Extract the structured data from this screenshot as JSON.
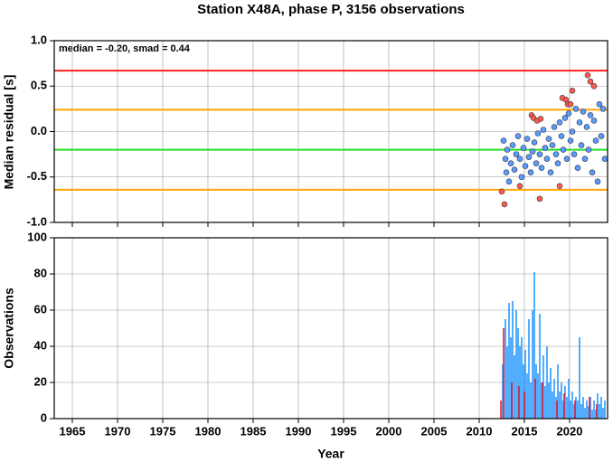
{
  "chart_data": [
    {
      "type": "scatter",
      "title": "Station X48A, phase P, 3156 observations",
      "ylabel": "Median residual [s]",
      "annotation": "median = -0.20, smad = 0.44",
      "xlim": [
        1963,
        2024.2
      ],
      "ylim": [
        -1,
        1
      ],
      "yticks": [
        {
          "value": 1,
          "label": "1.0"
        },
        {
          "value": 0.5,
          "label": "0.5"
        },
        {
          "value": 0,
          "label": "0.0"
        },
        {
          "value": -0.5,
          "label": "-0.5"
        },
        {
          "value": -1,
          "label": "-1.0"
        }
      ],
      "grid": true,
      "hlines": [
        {
          "value": 0.67,
          "color": "#ff2020"
        },
        {
          "value": 0.24,
          "color": "#ffa500"
        },
        {
          "value": -0.2,
          "color": "#22e022"
        },
        {
          "value": -0.64,
          "color": "#ffa500"
        }
      ],
      "series": [
        {
          "color": "#5b9bff",
          "x": [
            2012.7,
            2012.9,
            2013.0,
            2013.1,
            2013.3,
            2013.5,
            2013.7,
            2013.9,
            2014.1,
            2014.3,
            2014.5,
            2014.7,
            2014.9,
            2015.1,
            2015.3,
            2015.5,
            2015.7,
            2015.9,
            2016.1,
            2016.3,
            2016.5,
            2016.7,
            2016.9,
            2017.1,
            2017.3,
            2017.5,
            2017.7,
            2017.9,
            2018.1,
            2018.3,
            2018.5,
            2018.7,
            2018.9,
            2019.1,
            2019.3,
            2019.5,
            2019.7,
            2019.9,
            2020.1,
            2020.3,
            2020.5,
            2020.7,
            2020.9,
            2021.1,
            2021.3,
            2021.5,
            2021.7,
            2021.9,
            2022.1,
            2022.3,
            2022.5,
            2022.7,
            2022.9,
            2023.1,
            2023.3,
            2023.5,
            2023.7,
            2023.9
          ],
          "values": [
            -0.1,
            -0.3,
            -0.45,
            -0.2,
            -0.55,
            -0.35,
            -0.15,
            -0.42,
            -0.25,
            -0.05,
            -0.3,
            -0.5,
            -0.18,
            -0.38,
            -0.08,
            -0.28,
            -0.45,
            -0.22,
            -0.12,
            -0.35,
            -0.02,
            -0.25,
            -0.4,
            0.02,
            -0.18,
            -0.3,
            -0.08,
            -0.45,
            -0.15,
            0.05,
            -0.25,
            -0.35,
            0.1,
            -0.05,
            -0.2,
            0.15,
            -0.3,
            0.2,
            -0.1,
            0.0,
            -0.25,
            0.25,
            -0.4,
            0.1,
            -0.15,
            0.22,
            -0.3,
            0.05,
            -0.2,
            0.18,
            -0.45,
            0.12,
            -0.1,
            -0.55,
            0.3,
            -0.05,
            0.25,
            -0.3
          ]
        },
        {
          "color": "#ff5a4a",
          "x": [
            2012.5,
            2012.8,
            2014.5,
            2015.8,
            2016.0,
            2016.4,
            2016.7,
            2016.8,
            2018.9,
            2019.2,
            2019.6,
            2019.8,
            2020.1,
            2020.3,
            2022.0,
            2022.3,
            2022.7
          ],
          "values": [
            -0.66,
            -0.8,
            -0.6,
            0.18,
            0.15,
            0.12,
            -0.74,
            0.14,
            -0.6,
            0.37,
            0.35,
            0.3,
            0.3,
            0.45,
            0.62,
            0.55,
            0.5
          ]
        }
      ]
    },
    {
      "type": "bar",
      "xlabel": "Year",
      "ylabel": "Observations",
      "xlim": [
        1963,
        2024.2
      ],
      "ylim": [
        0,
        100
      ],
      "xticks": [
        1965,
        1970,
        1975,
        1980,
        1985,
        1990,
        1995,
        2000,
        2005,
        2010,
        2015,
        2020
      ],
      "yticks": [
        0,
        20,
        40,
        60,
        80,
        100
      ],
      "grid": true,
      "series": [
        {
          "color": "#2a9bff",
          "x": [
            2012.6,
            2012.9,
            2013.1,
            2013.3,
            2013.5,
            2013.7,
            2013.9,
            2014.1,
            2014.3,
            2014.5,
            2014.7,
            2014.9,
            2015.1,
            2015.3,
            2015.5,
            2015.7,
            2015.9,
            2016.1,
            2016.3,
            2016.5,
            2016.7,
            2016.9,
            2017.1,
            2017.3,
            2017.5,
            2017.7,
            2017.9,
            2018.1,
            2018.3,
            2018.5,
            2018.7,
            2018.9,
            2019.1,
            2019.3,
            2019.5,
            2019.7,
            2019.9,
            2020.1,
            2020.3,
            2020.5,
            2020.7,
            2020.9,
            2021.1,
            2021.3,
            2021.5,
            2021.7,
            2021.9,
            2022.1,
            2022.3,
            2022.5,
            2022.7,
            2022.9,
            2023.1,
            2023.3,
            2023.5,
            2023.7,
            2023.9
          ],
          "values": [
            30,
            55,
            40,
            64,
            45,
            65,
            35,
            60,
            50,
            40,
            45,
            30,
            38,
            25,
            55,
            20,
            60,
            81,
            30,
            25,
            58,
            20,
            35,
            18,
            40,
            20,
            28,
            15,
            22,
            12,
            30,
            15,
            20,
            10,
            18,
            12,
            22,
            10,
            15,
            8,
            12,
            10,
            45,
            8,
            12,
            6,
            10,
            7,
            12,
            5,
            10,
            5,
            14,
            8,
            12,
            6,
            10
          ]
        },
        {
          "color": "#e0203a",
          "x": [
            2012.4,
            2012.7,
            2013.6,
            2014.4,
            2015.0,
            2016.2,
            2017.0,
            2018.6,
            2019.4,
            2020.6,
            2022.2,
            2023.0
          ],
          "values": [
            10,
            50,
            20,
            18,
            15,
            22,
            20,
            10,
            14,
            10,
            12,
            8
          ]
        }
      ]
    }
  ]
}
